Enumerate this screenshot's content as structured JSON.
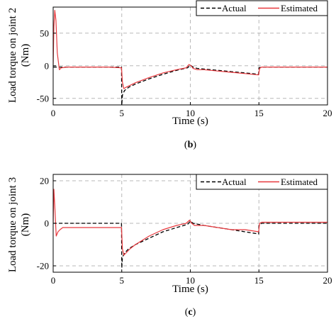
{
  "figure": {
    "panels": [
      {
        "caption": "(b)",
        "ylabel_lines": [
          "Load torque on joint 2",
          "(Nm)"
        ],
        "xlabel": "Time (s)"
      },
      {
        "caption": "(c)",
        "ylabel_lines": [
          "Load torque on joint 3",
          "(Nm)"
        ],
        "xlabel": "Time (s)"
      }
    ]
  },
  "chart_data": [
    {
      "type": "line",
      "title": "",
      "caption": "(b)",
      "xlabel": "Time (s)",
      "ylabel": "Load torque on joint 2 (Nm)",
      "xlim": [
        0,
        20
      ],
      "ylim": [
        -60,
        90
      ],
      "xticks": [
        0,
        5,
        10,
        15,
        20
      ],
      "yticks": [
        -50,
        0,
        50
      ],
      "grid": "dashed, at tick positions",
      "legend": "top-right",
      "series": [
        {
          "name": "Actual",
          "style": "dashed",
          "color": "#000000",
          "x": [
            0,
            0.2,
            0.5,
            4.98,
            5.0,
            5.05,
            5.2,
            5.5,
            6,
            7,
            8,
            9,
            9.8,
            10.0,
            10.2,
            10.5,
            11,
            12,
            13,
            14,
            14.98,
            15.0,
            15.2,
            16,
            18,
            20
          ],
          "y": [
            -2,
            -2,
            -2,
            -2,
            -60,
            -45,
            -38,
            -33,
            -28,
            -20,
            -13,
            -7,
            -3,
            1,
            -2,
            -4,
            -5,
            -7,
            -9,
            -11,
            -13,
            -3,
            -2,
            -2,
            -2,
            -2
          ]
        },
        {
          "name": "Estimated",
          "style": "solid",
          "color": "#e8383d",
          "x": [
            0,
            0.05,
            0.12,
            0.2,
            0.3,
            0.45,
            0.6,
            1,
            2,
            4,
            4.98,
            5.05,
            5.15,
            5.3,
            5.6,
            6,
            7,
            8,
            9,
            9.7,
            9.9,
            10.05,
            10.2,
            10.5,
            11,
            12,
            13,
            14,
            14.98,
            15.05,
            15.2,
            16,
            18,
            20
          ],
          "y": [
            0,
            60,
            85,
            70,
            20,
            -6,
            -3,
            -2,
            -2,
            -2,
            -3,
            -25,
            -35,
            -33,
            -30,
            -26,
            -18,
            -11,
            -6,
            -3,
            2,
            0,
            -4,
            -6,
            -6,
            -8,
            -10,
            -12,
            -14,
            -4,
            -2,
            -2,
            -2,
            -2
          ]
        }
      ]
    },
    {
      "type": "line",
      "title": "",
      "caption": "(c)",
      "xlabel": "Time (s)",
      "ylabel": "Load torque on joint 3 (Nm)",
      "xlim": [
        0,
        20
      ],
      "ylim": [
        -23,
        23
      ],
      "xticks": [
        0,
        5,
        10,
        15,
        20
      ],
      "yticks": [
        -20,
        0,
        20
      ],
      "grid": "dashed, at tick positions",
      "legend": "top-right",
      "series": [
        {
          "name": "Actual",
          "style": "dashed",
          "color": "#000000",
          "x": [
            0,
            0.2,
            0.5,
            4.98,
            5.0,
            5.05,
            5.2,
            5.5,
            6,
            7,
            8,
            9,
            9.8,
            10.0,
            10.2,
            11,
            12,
            13,
            14,
            14.98,
            15.0,
            15.2,
            16,
            18,
            20
          ],
          "y": [
            0,
            0,
            0,
            0,
            -21,
            -16,
            -14,
            -12,
            -10,
            -7,
            -4,
            -2,
            -0.5,
            1,
            0,
            -1,
            -2,
            -3,
            -4,
            -5,
            -1,
            0,
            0,
            0,
            0
          ]
        },
        {
          "name": "Estimated",
          "style": "solid",
          "color": "#e8383d",
          "x": [
            0,
            0.05,
            0.12,
            0.22,
            0.35,
            0.5,
            0.7,
            1,
            2,
            4,
            4.98,
            5.05,
            5.15,
            5.3,
            5.6,
            6,
            7,
            8,
            9,
            9.7,
            9.95,
            10.1,
            10.3,
            11,
            12,
            13,
            14,
            14.98,
            15.05,
            15.2,
            16,
            18,
            20
          ],
          "y": [
            0,
            16,
            8,
            -6,
            -4,
            -3,
            -2,
            -2,
            -2,
            -2,
            -2,
            -12,
            -15,
            -14,
            -12,
            -10,
            -6,
            -3,
            -1,
            0,
            1.5,
            0,
            -1,
            -1,
            -2,
            -3,
            -3,
            -4,
            0,
            0.5,
            0.5,
            0.5,
            0.5
          ]
        }
      ]
    }
  ]
}
